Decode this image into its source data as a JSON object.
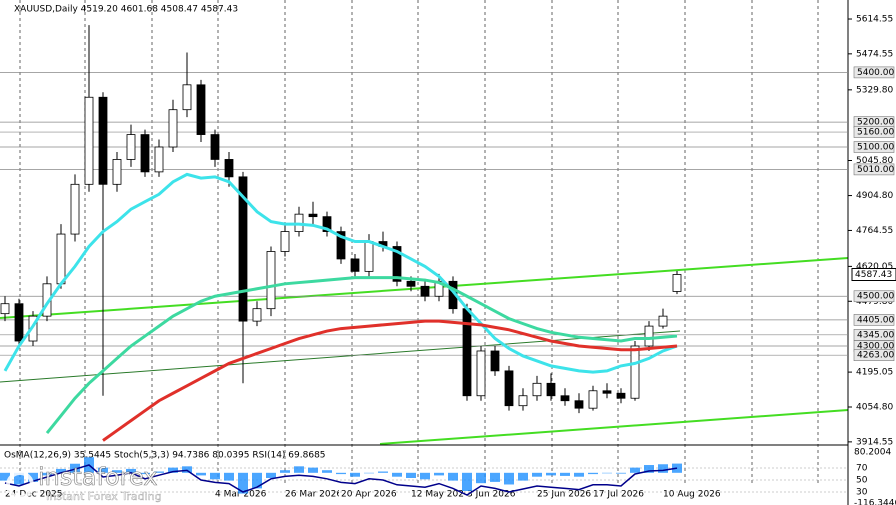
{
  "chart_data": {
    "type": "candlestick",
    "title": "XAUUSD,Daily  4519.20 4601.68 4508.47 4587.43",
    "categories": [
      "24 Dec 2025",
      null,
      null,
      null,
      null,
      null,
      null,
      null,
      null,
      null,
      null,
      null,
      null,
      null,
      null,
      "4 Mar 2026",
      null,
      null,
      null,
      null,
      "26 Mar 2026",
      null,
      null,
      null,
      "20 Apr 2026",
      null,
      null,
      null,
      null,
      "12 May 2026",
      null,
      null,
      null,
      "3 Jun 2026",
      null,
      null,
      null,
      null,
      "25 Jun 2026",
      null,
      null,
      null,
      "17 Jul 2026",
      null,
      null,
      null,
      null,
      "10 Aug 2026",
      null
    ],
    "open": [
      4430,
      4470,
      4320,
      4420,
      4550,
      4750,
      4950,
      5300,
      4950,
      5050,
      5150,
      5000,
      5100,
      5250,
      5350,
      5150,
      5050,
      4980,
      4400,
      4450,
      4680,
      4760,
      4830,
      4820,
      4760,
      4650,
      4600,
      4720,
      4700,
      4560,
      4540,
      4500,
      4560,
      4450,
      4100,
      4280,
      4200,
      4060,
      4100,
      4150,
      4100,
      4080,
      4050,
      4120,
      4110,
      4090,
      4300,
      4380,
      4519.2
    ],
    "high": [
      4500,
      4490,
      4440,
      4580,
      4790,
      4990,
      5590,
      5320,
      5080,
      5190,
      5170,
      5130,
      5290,
      5480,
      5370,
      5170,
      5080,
      5000,
      4480,
      4700,
      4790,
      4860,
      4880,
      4840,
      4780,
      4670,
      4750,
      4760,
      4720,
      4580,
      4570,
      4590,
      4580,
      4470,
      4300,
      4300,
      4220,
      4130,
      4180,
      4190,
      4130,
      4110,
      4140,
      4150,
      4130,
      4320,
      4400,
      4450,
      4601.68
    ],
    "low": [
      4400,
      4300,
      4300,
      4400,
      4530,
      4720,
      4920,
      4100,
      4920,
      5020,
      4980,
      4980,
      5080,
      5220,
      5120,
      5020,
      4940,
      4150,
      4380,
      4420,
      4660,
      4740,
      4790,
      4740,
      4630,
      4580,
      4580,
      4680,
      4540,
      4520,
      4480,
      4480,
      4430,
      4080,
      4080,
      4180,
      4040,
      4040,
      4080,
      4080,
      4060,
      4030,
      4040,
      4090,
      4070,
      4080,
      4280,
      4370,
      4508.47
    ],
    "close": [
      4470,
      4320,
      4420,
      4550,
      4750,
      4950,
      5300,
      4950,
      5050,
      5150,
      5000,
      5100,
      5250,
      5350,
      5150,
      5050,
      4980,
      4400,
      4450,
      4680,
      4760,
      4830,
      4820,
      4760,
      4650,
      4600,
      4720,
      4700,
      4560,
      4540,
      4500,
      4560,
      4450,
      4100,
      4280,
      4200,
      4060,
      4100,
      4150,
      4100,
      4080,
      4050,
      4120,
      4110,
      4090,
      4300,
      4380,
      4420,
      4587.43
    ],
    "bull_color": "#ffffff",
    "bear_color": "#000000",
    "series": [
      {
        "color": "#3de3ea",
        "values": [
          4200,
          4300,
          4380,
          4470,
          4550,
          4620,
          4700,
          4760,
          4800,
          4850,
          4880,
          4910,
          4960,
          4990,
          4975,
          4980,
          4960,
          4900,
          4840,
          4800,
          4790,
          4790,
          4785,
          4770,
          4740,
          4720,
          4720,
          4700,
          4680,
          4650,
          4620,
          4580,
          4520,
          4450,
          4390,
          4330,
          4290,
          4260,
          4240,
          4220,
          4210,
          4200,
          4195,
          4200,
          4220,
          4230,
          4250,
          4280,
          4300
        ]
      },
      {
        "color": "#3dd9a0",
        "values": [
          null,
          null,
          null,
          3950,
          4020,
          4090,
          4150,
          4200,
          4250,
          4300,
          4340,
          4380,
          4420,
          4450,
          4480,
          4500,
          4510,
          4520,
          4530,
          4540,
          4550,
          4555,
          4560,
          4565,
          4570,
          4575,
          4575,
          4575,
          4575,
          4570,
          4565,
          4555,
          4530,
          4500,
          4470,
          4440,
          4410,
          4390,
          4370,
          4355,
          4345,
          4335,
          4330,
          4325,
          4320,
          4330,
          4330,
          4335,
          4340
        ]
      },
      {
        "color": "#e0302a",
        "values": [
          null,
          null,
          null,
          null,
          null,
          null,
          null,
          3920,
          3960,
          4000,
          4040,
          4080,
          4110,
          4140,
          4170,
          4200,
          4230,
          4250,
          4270,
          4290,
          4310,
          4330,
          4345,
          4360,
          4370,
          4375,
          4380,
          4385,
          4390,
          4395,
          4400,
          4400,
          4395,
          4390,
          4385,
          4375,
          4365,
          4350,
          4335,
          4320,
          4310,
          4300,
          4295,
          4290,
          4285,
          4285,
          4290,
          4295,
          4300
        ]
      }
    ],
    "ylim": [
      3906,
      5691
    ],
    "yticks": [
      5614.55,
      5474.55,
      {
        "value": 5329.8,
        "label": "5329.80"
      },
      {
        "value": 5045.8,
        "label": "5045.80"
      },
      {
        "value": 4904.8,
        "label": "4904.80"
      },
      4764.55,
      4620.05,
      {
        "value": 4479.8,
        "label": "4479.80"
      },
      4195.05,
      {
        "value": 4054.8,
        "label": "4054.80"
      },
      3914.55
    ],
    "levels": [
      {
        "value": 5400,
        "label": "5400.00"
      },
      {
        "value": 5200,
        "label": "5200.00"
      },
      {
        "value": 5160,
        "label": "5160.00"
      },
      {
        "value": 5100,
        "label": "5100.00"
      },
      {
        "value": 5010,
        "label": "5010.00"
      },
      {
        "value": 4500,
        "label": "4500.00"
      },
      {
        "value": 4405,
        "label": "4405.00"
      },
      {
        "value": 4345,
        "label": "4345.00"
      },
      {
        "value": 4300,
        "label": "4300.00"
      },
      {
        "value": 4263,
        "label": "4263.00"
      }
    ],
    "current_price": 4587.43,
    "indicator_title": "OsMA(12,26,9) 35.5445 Stoch(5,3,3) 94.7386 80.0395 RSI(14) 69.8685",
    "osma": [
      -30,
      -45,
      -35,
      -10,
      15,
      35,
      60,
      20,
      10,
      15,
      -5,
      5,
      20,
      25,
      -10,
      -25,
      -30,
      -80,
      -60,
      -20,
      10,
      25,
      20,
      10,
      -5,
      -15,
      0,
      5,
      -15,
      -20,
      -25,
      -10,
      -30,
      -70,
      -40,
      -35,
      -45,
      -30,
      -15,
      -10,
      -12,
      -15,
      -5,
      0,
      -3,
      20,
      30,
      33,
      35.5445
    ],
    "osma_color": "#1e90ff",
    "osma_ylim": [
      -116.3446,
      80.2004
    ],
    "osma_ticks": [
      80.2004,
      -116.3446
    ],
    "rsi": [
      45,
      40,
      48,
      55,
      62,
      68,
      75,
      55,
      58,
      62,
      52,
      58,
      64,
      66,
      50,
      46,
      44,
      30,
      38,
      52,
      56,
      58,
      56,
      52,
      46,
      44,
      52,
      50,
      42,
      40,
      38,
      44,
      36,
      25,
      40,
      36,
      30,
      35,
      40,
      38,
      36,
      34,
      42,
      42,
      40,
      60,
      65,
      66,
      69.8685
    ],
    "rsi_color": "#00008b",
    "rsi_ylim": [
      0,
      100
    ],
    "rsi_ticks": [
      70,
      50,
      30
    ],
    "watermark": {
      "brand": "instaforex",
      "tagline": "Instant Forex Trading"
    }
  }
}
